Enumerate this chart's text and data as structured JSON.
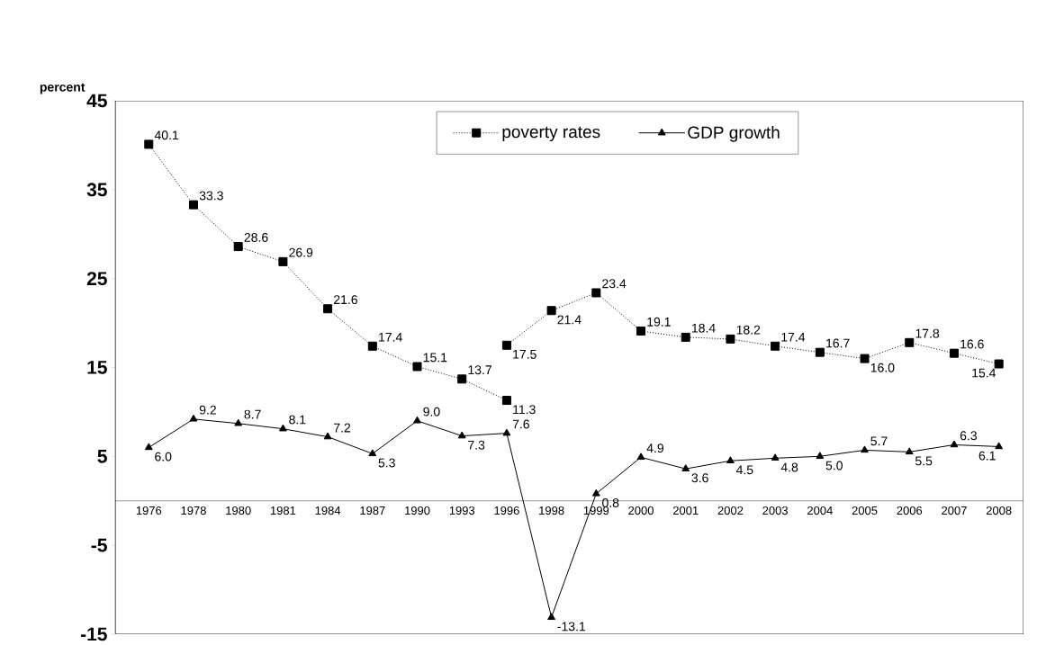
{
  "chart_data": {
    "type": "line",
    "ylabel": "percent",
    "categories": [
      "1976",
      "1978",
      "1980",
      "1981",
      "1984",
      "1987",
      "1990",
      "1993",
      "1996",
      "1998",
      "1999",
      "2000",
      "2001",
      "2002",
      "2003",
      "2004",
      "2005",
      "2006",
      "2007",
      "2008"
    ],
    "series": [
      {
        "name": "poverty rates",
        "color": "#000000",
        "marker": "square",
        "line_style": "dotted",
        "values": [
          40.1,
          33.3,
          28.6,
          26.9,
          21.6,
          17.4,
          15.1,
          13.7,
          11.3,
          null,
          null,
          null,
          null,
          null,
          null,
          null,
          null,
          null,
          null,
          null
        ],
        "value_labels": [
          "40.1",
          "33.3",
          "28.6",
          "26.9",
          "21.6",
          "17.4",
          "15.1",
          "13.7",
          "11.3",
          null,
          null,
          null,
          null,
          null,
          null,
          null,
          null,
          null,
          null,
          null
        ]
      },
      {
        "color": "#000000",
        "marker": "square",
        "line_style": "dotted",
        "values": [
          null,
          null,
          null,
          null,
          null,
          null,
          null,
          null,
          17.5,
          21.4,
          23.4,
          19.1,
          18.4,
          18.2,
          17.4,
          16.7,
          16.0,
          17.8,
          16.6,
          15.4
        ],
        "value_labels": [
          null,
          null,
          null,
          null,
          null,
          null,
          null,
          null,
          "17.5",
          "21.4",
          "23.4",
          "19.1",
          "18.4",
          "18.2",
          "17.4",
          "16.7",
          "16.0",
          "17.8",
          "16.6",
          "15.4"
        ]
      },
      {
        "name": "GDP growth",
        "color": "#000000",
        "marker": "triangle",
        "line_style": "solid",
        "values": [
          6.0,
          9.2,
          8.7,
          8.1,
          7.2,
          5.3,
          9.0,
          7.3,
          7.6,
          -13.1,
          0.8,
          4.9,
          3.6,
          4.5,
          4.8,
          5.0,
          5.7,
          5.5,
          6.3,
          6.1
        ],
        "value_labels": [
          "6.0",
          "9.2",
          "8.7",
          "8.1",
          "7.2",
          "5.3",
          "9.0",
          "7.3",
          "7.6",
          "-13.1",
          "0.8",
          "4.9",
          "3.6",
          "4.5",
          "4.8",
          "5.0",
          "5.7",
          "5.5",
          "6.3",
          "6.1"
        ]
      }
    ],
    "ylim": [
      -15,
      45
    ],
    "yticks": [
      -15,
      -5,
      5,
      15,
      25,
      35,
      45
    ],
    "legend": "top",
    "grid": false
  }
}
